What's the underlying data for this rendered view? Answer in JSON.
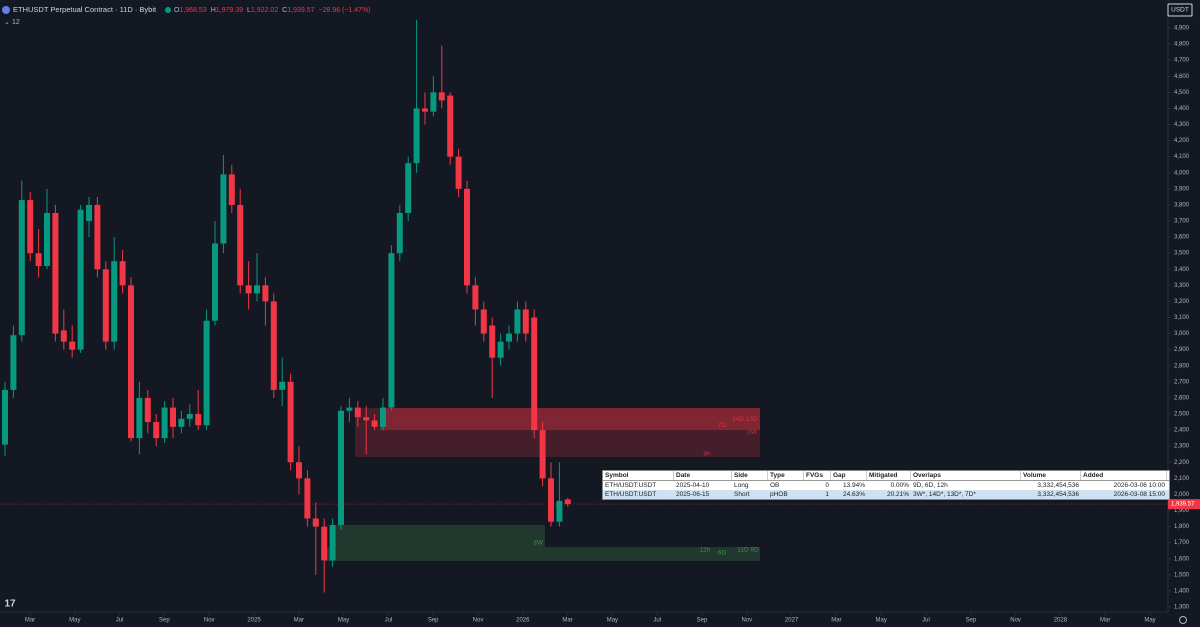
{
  "header": {
    "symbol": "ETHUSDT Perpetual Contract · 11D · Bybit",
    "ohlc": [
      {
        "key": "O",
        "value": "1,968.53"
      },
      {
        "key": "H",
        "value": "1,979.39"
      },
      {
        "key": "L",
        "value": "1,922.02"
      },
      {
        "key": "C",
        "value": "1,939.57"
      }
    ],
    "change": "−28.96 (−1.47%)",
    "indicator_count": "12",
    "currency": "USDT"
  },
  "chart_data": {
    "type": "candlestick",
    "up_color": "#089981",
    "down_color": "#f23645",
    "open": [
      2310,
      2650,
      2990,
      3830,
      3500,
      3420,
      3750,
      3020,
      2950,
      2900,
      3700,
      3800,
      3400,
      2950,
      3450,
      3300,
      2350,
      2600,
      2450,
      2350,
      2540,
      2420,
      2470,
      2500,
      2430,
      3080,
      3560,
      3990,
      3800,
      3300,
      3250,
      3300,
      3200,
      2650,
      2700,
      2200,
      2100,
      1850,
      1800,
      1590,
      1810,
      2520,
      2540,
      2480,
      2460,
      2420,
      2540,
      3500,
      3750,
      4060,
      4400,
      4380,
      4500,
      4480,
      4100,
      3900,
      3300,
      3150,
      3050,
      2850,
      2950,
      3000,
      3150,
      3100,
      2400,
      2100,
      1830,
      1968.53
    ],
    "high": [
      2700,
      3050,
      3950,
      3880,
      3650,
      3900,
      3800,
      3150,
      3050,
      3800,
      3850,
      3850,
      3450,
      3600,
      3520,
      3350,
      2700,
      2650,
      2500,
      2580,
      2600,
      2520,
      2560,
      2650,
      3150,
      3700,
      4110,
      4050,
      3900,
      3450,
      3500,
      3350,
      3250,
      2850,
      2750,
      2300,
      2150,
      1950,
      1850,
      1850,
      2550,
      2600,
      2580,
      2550,
      2500,
      2600,
      3550,
      3800,
      4100,
      4950,
      4500,
      4600,
      4790,
      4500,
      4150,
      3950,
      3350,
      3200,
      3100,
      3000,
      3050,
      3200,
      3200,
      3150,
      2450,
      2200,
      2200,
      1979.39
    ],
    "low": [
      2240,
      2600,
      2950,
      3450,
      3350,
      3400,
      2950,
      2900,
      2850,
      2880,
      3600,
      3350,
      2900,
      2900,
      3250,
      2330,
      2250,
      2380,
      2300,
      2320,
      2350,
      2380,
      2420,
      2400,
      2400,
      3050,
      3500,
      3750,
      3250,
      3150,
      3200,
      3050,
      2600,
      2550,
      2150,
      2000,
      1800,
      1500,
      1390,
      1550,
      1780,
      2450,
      2420,
      2250,
      2400,
      2400,
      2520,
      3450,
      3700,
      4000,
      4300,
      4350,
      4400,
      4050,
      3850,
      3250,
      3050,
      2950,
      2600,
      2800,
      2900,
      2950,
      2950,
      2350,
      2050,
      1800,
      1800,
      1922.02
    ],
    "close": [
      2650,
      2990,
      3830,
      3500,
      3420,
      3750,
      3000,
      2950,
      2900,
      3770,
      3800,
      3400,
      2950,
      3450,
      3300,
      2350,
      2600,
      2450,
      2350,
      2540,
      2420,
      2470,
      2500,
      2430,
      3080,
      3560,
      3990,
      3800,
      3300,
      3250,
      3300,
      3200,
      2650,
      2700,
      2200,
      2100,
      1850,
      1800,
      1590,
      1810,
      2520,
      2540,
      2480,
      2460,
      2420,
      2540,
      3500,
      3750,
      4060,
      4400,
      4380,
      4500,
      4450,
      4100,
      3900,
      3300,
      3150,
      3000,
      2850,
      2950,
      3000,
      3150,
      3000,
      2400,
      2100,
      1830,
      1960,
      1939.57
    ],
    "last_price": 1939.57,
    "last_price_label": "1,939.57",
    "zones": [
      {
        "top": 2537,
        "bottom": 2233,
        "color": "#f23645",
        "labels": [
          "8h"
        ]
      },
      {
        "top": 2537,
        "bottom": 2400,
        "color": "#f23645",
        "labels": [
          "14D 13D",
          "7D",
          "3W"
        ]
      },
      {
        "top": 1810,
        "bottom": 1673,
        "color": "#4caf50",
        "labels": [
          "3W"
        ]
      },
      {
        "top": 1673,
        "bottom": 1586,
        "color": "#4caf50",
        "labels": [
          "12h",
          "6D",
          "11D 9D"
        ]
      }
    ],
    "ylim": [
      1300,
      4900
    ],
    "yticks": [
      {
        "value": 1300,
        "label": "1,300"
      },
      {
        "value": 1400,
        "label": "1,400"
      },
      {
        "value": 1500,
        "label": "1,500"
      },
      {
        "value": 1600,
        "label": "1,600"
      },
      {
        "value": 1700,
        "label": "1,700"
      },
      {
        "value": 1800,
        "label": "1,800"
      },
      {
        "value": 1900,
        "label": "1,900"
      },
      {
        "value": 2000,
        "label": "2,000"
      },
      {
        "value": 2100,
        "label": "2,100"
      },
      {
        "value": 2200,
        "label": "2,200"
      },
      {
        "value": 2300,
        "label": "2,300"
      },
      {
        "value": 2400,
        "label": "2,400"
      },
      {
        "value": 2500,
        "label": "2,500"
      },
      {
        "value": 2600,
        "label": "2,600"
      },
      {
        "value": 2700,
        "label": "2,700"
      },
      {
        "value": 2800,
        "label": "2,800"
      },
      {
        "value": 2900,
        "label": "2,900"
      },
      {
        "value": 3000,
        "label": "3,000"
      },
      {
        "value": 3100,
        "label": "3,100"
      },
      {
        "value": 3200,
        "label": "3,200"
      },
      {
        "value": 3300,
        "label": "3,300"
      },
      {
        "value": 3400,
        "label": "3,400"
      },
      {
        "value": 3500,
        "label": "3,500"
      },
      {
        "value": 3600,
        "label": "3,600"
      },
      {
        "value": 3700,
        "label": "3,700"
      },
      {
        "value": 3800,
        "label": "3,800"
      },
      {
        "value": 3900,
        "label": "3,900"
      },
      {
        "value": 4000,
        "label": "4,000"
      },
      {
        "value": 4100,
        "label": "4,100"
      },
      {
        "value": 4200,
        "label": "4,200"
      },
      {
        "value": 4300,
        "label": "4,300"
      },
      {
        "value": 4400,
        "label": "4,400"
      },
      {
        "value": 4500,
        "label": "4,500"
      },
      {
        "value": 4600,
        "label": "4,600"
      },
      {
        "value": 4700,
        "label": "4,700"
      },
      {
        "value": 4800,
        "label": "4,800"
      },
      {
        "value": 4900,
        "label": "4,900"
      }
    ],
    "xticks": [
      {
        "value": 2,
        "label": "Mar"
      },
      {
        "value": 4,
        "label": "May"
      },
      {
        "value": 6,
        "label": "Jul"
      },
      {
        "value": 8,
        "label": "Sep"
      },
      {
        "value": 10,
        "label": "Nov"
      },
      {
        "value": 12,
        "label": "2025"
      },
      {
        "value": 14,
        "label": "Mar"
      },
      {
        "value": 16,
        "label": "May"
      },
      {
        "value": 18,
        "label": "Jul"
      },
      {
        "value": 20,
        "label": "Sep"
      },
      {
        "value": 22,
        "label": "Nov"
      },
      {
        "value": 24,
        "label": "2026"
      },
      {
        "value": 26,
        "label": "Mar"
      },
      {
        "value": 28,
        "label": "May"
      },
      {
        "value": 30,
        "label": "Jul"
      },
      {
        "value": 32,
        "label": "Sep"
      },
      {
        "value": 34,
        "label": "Nov"
      },
      {
        "value": 36,
        "label": "2027"
      },
      {
        "value": 38,
        "label": "Mar"
      },
      {
        "value": 40,
        "label": "May"
      },
      {
        "value": 42,
        "label": "Jul"
      },
      {
        "value": 44,
        "label": "Sep"
      },
      {
        "value": 46,
        "label": "Nov"
      },
      {
        "value": 48,
        "label": "2028"
      },
      {
        "value": 50,
        "label": "Mar"
      },
      {
        "value": 52,
        "label": "May"
      }
    ],
    "grid": false
  },
  "table": {
    "columns": [
      "Symbol",
      "Date",
      "Side",
      "Type",
      "FVGs",
      "Gap",
      "Mitigated",
      "Overlaps",
      "Volume",
      "Added"
    ],
    "rows": [
      [
        "ETH/USDT:USDT",
        "2025-04-10",
        "Long",
        "OB",
        0,
        "13.94%",
        "0.00%",
        "9D, 6D, 12h",
        "3,332,454,536",
        "2026-03-06 10:00"
      ],
      [
        "ETH/USDT:USDT",
        "2025-06-15",
        "Short",
        "pHOB",
        1,
        "24.63%",
        "20.21%",
        "3W*, 14D*, 13D*, 7D*",
        "3,332,454,536",
        "2026-03-08 15:00"
      ]
    ]
  }
}
